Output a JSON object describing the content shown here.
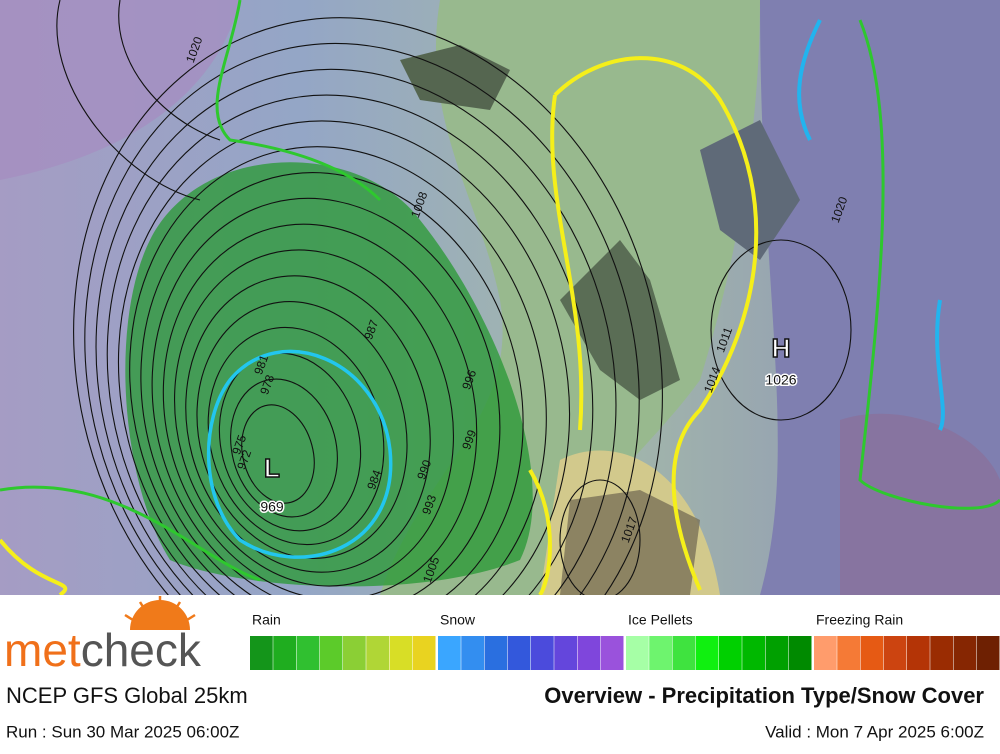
{
  "map": {
    "lows": [
      {
        "letter": "L",
        "value": "969"
      }
    ],
    "highs": [
      {
        "letter": "H",
        "value": "1026"
      }
    ],
    "isobar_labels": [
      "1020",
      "1008",
      "987",
      "981",
      "978",
      "975",
      "972",
      "984",
      "990",
      "993",
      "996",
      "999",
      "1017",
      "1011",
      "1020",
      "1014",
      "1005"
    ]
  },
  "legend": {
    "groups": [
      {
        "label": "Rain",
        "colors": [
          "#14951a",
          "#1fad1f",
          "#30c030",
          "#5ccb2a",
          "#8bcf35",
          "#b0d636",
          "#d8de26",
          "#e9d320"
        ]
      },
      {
        "label": "Snow",
        "colors": [
          "#3aa6ff",
          "#338ef0",
          "#2a6fe0",
          "#3358dc",
          "#4b4bdc",
          "#6446dc",
          "#7f46dc",
          "#9a52dc"
        ]
      },
      {
        "label": "Ice Pellets",
        "colors": [
          "#a6ffa6",
          "#6ef46e",
          "#3fe33f",
          "#10f010",
          "#00d000",
          "#00b800",
          "#00a000",
          "#008a00"
        ]
      },
      {
        "label": "Freezing Rain",
        "colors": [
          "#ff9c6c",
          "#f57a36",
          "#e65a14",
          "#cc4410",
          "#b43406",
          "#9a2c02",
          "#862602",
          "#6e2002"
        ]
      }
    ]
  },
  "logo": {
    "part1": "met",
    "part2": "check"
  },
  "footer": {
    "model": "NCEP GFS Global 25km",
    "title": "Overview - Precipitation Type/Snow Cover",
    "run": "Run : Sun 30 Mar 2025 06:00Z",
    "valid": "Valid : Mon 7 Apr 2025 6:00Z"
  }
}
